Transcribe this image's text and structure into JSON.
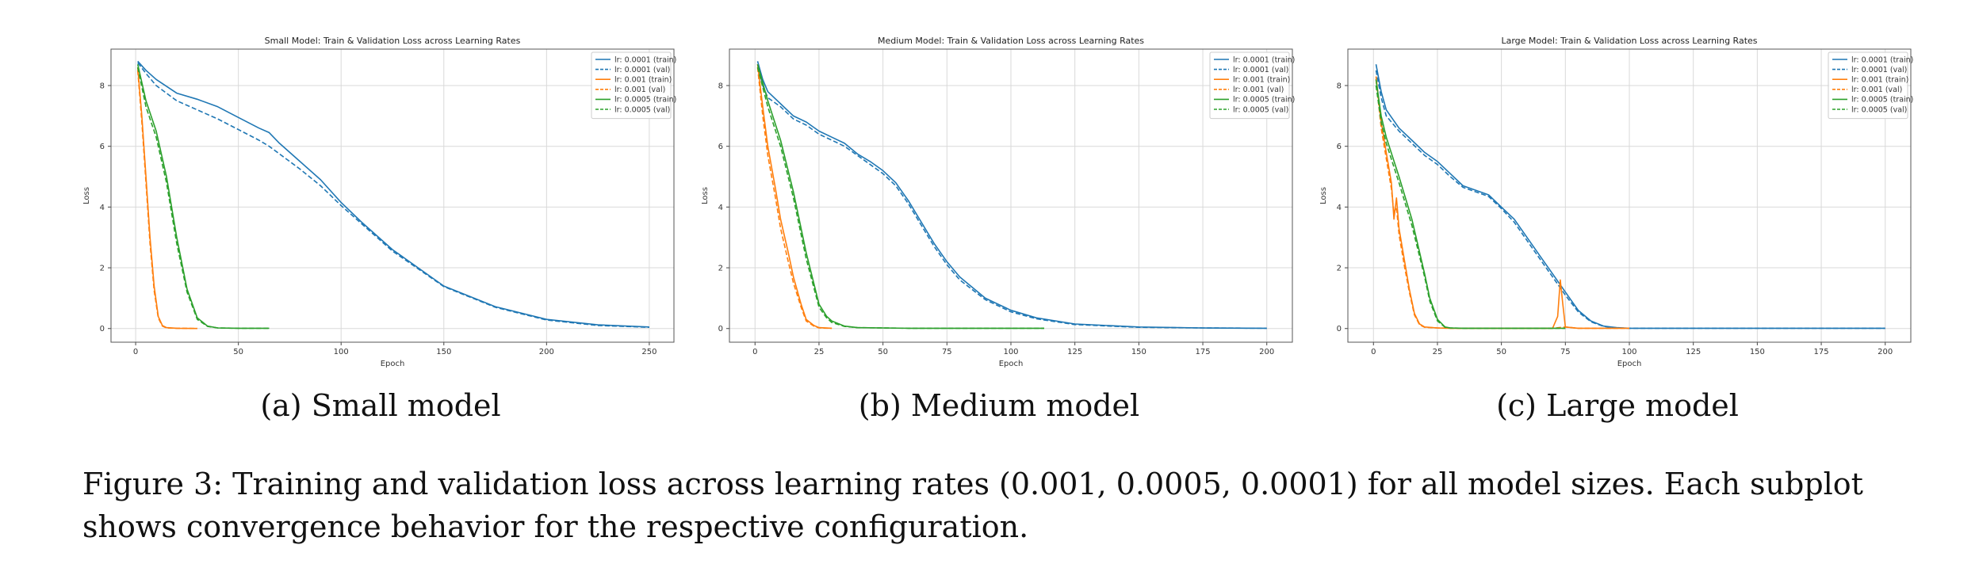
{
  "figure": {
    "caption": "Figure 3: Training and validation loss across learning rates (0.001, 0.0005, 0.0001) for all model sizes. Each subplot shows convergence behavior for the respective configuration.",
    "subcaptions": [
      "(a) Small model",
      "(b) Medium model",
      "(c) Large model"
    ]
  },
  "colors": {
    "lr_0001": "#1f77b4",
    "lr_001": "#ff7f0e",
    "lr_0005": "#2ca02c"
  },
  "chart_data": [
    {
      "type": "line",
      "title": "Small Model: Train & Validation Loss across Learning Rates",
      "xlabel": "Epoch",
      "ylabel": "Loss",
      "xlim": [
        -12,
        262
      ],
      "ylim": [
        -0.45,
        9.2
      ],
      "xticks": [
        0,
        50,
        100,
        150,
        200,
        250
      ],
      "yticks": [
        0,
        2,
        4,
        6,
        8
      ],
      "grid": true,
      "legend": "top-right",
      "series": [
        {
          "name": "lr: 0.0001 (train)",
          "color": "#1f77b4",
          "dash": false,
          "x": [
            1,
            5,
            10,
            20,
            30,
            40,
            50,
            60,
            65,
            70,
            80,
            90,
            100,
            110,
            125,
            150,
            175,
            200,
            225,
            250
          ],
          "y": [
            8.8,
            8.5,
            8.2,
            7.75,
            7.55,
            7.3,
            6.95,
            6.6,
            6.45,
            6.1,
            5.5,
            4.9,
            4.15,
            3.5,
            2.6,
            1.4,
            0.72,
            0.3,
            0.12,
            0.05
          ]
        },
        {
          "name": "lr: 0.0001 (val)",
          "color": "#1f77b4",
          "dash": true,
          "x": [
            1,
            5,
            10,
            20,
            30,
            40,
            50,
            60,
            65,
            70,
            80,
            90,
            100,
            110,
            125,
            150,
            175,
            200,
            225,
            250
          ],
          "y": [
            8.75,
            8.4,
            8.0,
            7.5,
            7.2,
            6.9,
            6.55,
            6.2,
            6.0,
            5.75,
            5.25,
            4.7,
            4.05,
            3.45,
            2.55,
            1.38,
            0.7,
            0.28,
            0.1,
            0.04
          ]
        },
        {
          "name": "lr: 0.001 (train)",
          "color": "#ff7f0e",
          "dash": false,
          "x": [
            1,
            3,
            5,
            7,
            9,
            11,
            13,
            15,
            20,
            30
          ],
          "y": [
            8.6,
            7.0,
            5.0,
            3.0,
            1.4,
            0.4,
            0.1,
            0.03,
            0.01,
            0.0
          ]
        },
        {
          "name": "lr: 0.001 (val)",
          "color": "#ff7f0e",
          "dash": true,
          "x": [
            1,
            3,
            5,
            7,
            9,
            11,
            13,
            15,
            20,
            30
          ],
          "y": [
            8.5,
            6.8,
            4.8,
            2.8,
            1.25,
            0.35,
            0.08,
            0.02,
            0.01,
            0.0
          ]
        },
        {
          "name": "lr: 0.0005 (train)",
          "color": "#2ca02c",
          "dash": false,
          "x": [
            1,
            5,
            10,
            15,
            20,
            25,
            30,
            35,
            40,
            50,
            65
          ],
          "y": [
            8.7,
            7.5,
            6.5,
            5.0,
            3.0,
            1.3,
            0.35,
            0.08,
            0.02,
            0.01,
            0.01
          ]
        },
        {
          "name": "lr: 0.0005 (val)",
          "color": "#2ca02c",
          "dash": true,
          "x": [
            1,
            5,
            10,
            15,
            20,
            25,
            30,
            35,
            40,
            50,
            65
          ],
          "y": [
            8.6,
            7.3,
            6.3,
            4.8,
            2.8,
            1.2,
            0.3,
            0.07,
            0.02,
            0.01,
            0.01
          ]
        }
      ]
    },
    {
      "type": "line",
      "title": "Medium Model: Train & Validation Loss across Learning Rates",
      "xlabel": "Epoch",
      "ylabel": "Loss",
      "xlim": [
        -10,
        210
      ],
      "ylim": [
        -0.45,
        9.2
      ],
      "xticks": [
        0,
        25,
        50,
        75,
        100,
        125,
        150,
        175,
        200
      ],
      "yticks": [
        0,
        2,
        4,
        6,
        8
      ],
      "grid": true,
      "legend": "top-right",
      "series": [
        {
          "name": "lr: 0.0001 (train)",
          "color": "#1f77b4",
          "dash": false,
          "x": [
            1,
            3,
            5,
            10,
            15,
            20,
            25,
            30,
            35,
            40,
            45,
            50,
            55,
            60,
            65,
            70,
            75,
            80,
            90,
            100,
            110,
            125,
            150,
            175,
            200
          ],
          "y": [
            8.8,
            8.2,
            7.8,
            7.4,
            7.0,
            6.8,
            6.5,
            6.3,
            6.1,
            5.75,
            5.5,
            5.2,
            4.8,
            4.2,
            3.5,
            2.8,
            2.2,
            1.7,
            1.0,
            0.6,
            0.35,
            0.15,
            0.05,
            0.02,
            0.01
          ]
        },
        {
          "name": "lr: 0.0001 (val)",
          "color": "#1f77b4",
          "dash": true,
          "x": [
            1,
            3,
            5,
            10,
            15,
            20,
            25,
            30,
            35,
            40,
            45,
            50,
            55,
            60,
            65,
            70,
            75,
            80,
            90,
            100,
            110,
            125,
            150,
            175,
            200
          ],
          "y": [
            8.7,
            8.0,
            7.6,
            7.3,
            6.9,
            6.7,
            6.4,
            6.2,
            6.0,
            5.7,
            5.4,
            5.1,
            4.7,
            4.1,
            3.4,
            2.7,
            2.1,
            1.6,
            0.95,
            0.55,
            0.32,
            0.13,
            0.04,
            0.02,
            0.01
          ]
        },
        {
          "name": "lr: 0.001 (train)",
          "color": "#ff7f0e",
          "dash": false,
          "x": [
            1,
            3,
            5,
            8,
            10,
            13,
            15,
            18,
            20,
            23,
            25,
            30
          ],
          "y": [
            8.7,
            7.3,
            6.0,
            4.6,
            3.6,
            2.5,
            1.7,
            0.8,
            0.3,
            0.1,
            0.03,
            0.01
          ]
        },
        {
          "name": "lr: 0.001 (val)",
          "color": "#ff7f0e",
          "dash": true,
          "x": [
            1,
            3,
            5,
            8,
            10,
            13,
            15,
            18,
            20,
            23,
            25,
            30
          ],
          "y": [
            8.6,
            7.0,
            5.7,
            4.3,
            3.3,
            2.2,
            1.5,
            0.7,
            0.25,
            0.08,
            0.02,
            0.01
          ]
        },
        {
          "name": "lr: 0.0005 (train)",
          "color": "#2ca02c",
          "dash": false,
          "x": [
            1,
            5,
            10,
            15,
            20,
            25,
            28,
            30,
            35,
            40,
            50,
            60,
            80,
            100,
            113
          ],
          "y": [
            8.7,
            7.5,
            6.2,
            4.5,
            2.5,
            0.8,
            0.4,
            0.25,
            0.08,
            0.03,
            0.02,
            0.01,
            0.01,
            0.01,
            0.01
          ]
        },
        {
          "name": "lr: 0.0005 (val)",
          "color": "#2ca02c",
          "dash": true,
          "x": [
            1,
            5,
            10,
            15,
            20,
            25,
            28,
            30,
            35,
            40,
            50,
            60,
            80,
            100,
            113
          ],
          "y": [
            8.6,
            7.3,
            6.0,
            4.3,
            2.3,
            0.7,
            0.35,
            0.2,
            0.07,
            0.03,
            0.02,
            0.01,
            0.01,
            0.01,
            0.01
          ]
        }
      ]
    },
    {
      "type": "line",
      "title": "Large Model: Train & Validation Loss across Learning Rates",
      "xlabel": "Epoch",
      "ylabel": "Loss",
      "xlim": [
        -10,
        210
      ],
      "ylim": [
        -0.45,
        9.2
      ],
      "xticks": [
        0,
        25,
        50,
        75,
        100,
        125,
        150,
        175,
        200
      ],
      "yticks": [
        0,
        2,
        4,
        6,
        8
      ],
      "grid": true,
      "legend": "top-right",
      "series": [
        {
          "name": "lr: 0.0001 (train)",
          "color": "#1f77b4",
          "dash": false,
          "x": [
            1,
            3,
            5,
            10,
            15,
            20,
            25,
            30,
            35,
            40,
            45,
            50,
            55,
            60,
            65,
            70,
            75,
            80,
            85,
            90,
            95,
            100,
            125,
            150,
            175,
            200
          ],
          "y": [
            8.7,
            7.8,
            7.2,
            6.6,
            6.2,
            5.8,
            5.5,
            5.1,
            4.7,
            4.55,
            4.4,
            4.0,
            3.6,
            3.0,
            2.4,
            1.8,
            1.2,
            0.6,
            0.25,
            0.08,
            0.03,
            0.01,
            0.01,
            0.01,
            0.01,
            0.01
          ]
        },
        {
          "name": "lr: 0.0001 (val)",
          "color": "#1f77b4",
          "dash": true,
          "x": [
            1,
            3,
            5,
            10,
            15,
            20,
            25,
            30,
            35,
            40,
            45,
            50,
            55,
            60,
            65,
            70,
            75,
            80,
            85,
            90,
            95,
            100,
            125,
            150,
            175,
            200
          ],
          "y": [
            8.5,
            7.6,
            7.0,
            6.5,
            6.1,
            5.7,
            5.4,
            5.0,
            4.65,
            4.5,
            4.35,
            3.95,
            3.5,
            2.9,
            2.3,
            1.7,
            1.1,
            0.55,
            0.22,
            0.07,
            0.02,
            0.01,
            0.01,
            0.01,
            0.01,
            0.01
          ]
        },
        {
          "name": "lr: 0.001 (train)",
          "color": "#ff7f0e",
          "dash": false,
          "x": [
            1,
            3,
            5,
            7,
            8,
            9,
            10,
            12,
            14,
            16,
            18,
            20,
            25,
            30,
            40,
            50,
            60,
            70,
            72,
            73,
            74,
            75,
            80,
            90,
            100
          ],
          "y": [
            8.3,
            6.8,
            5.8,
            4.8,
            3.6,
            4.3,
            3.3,
            2.3,
            1.3,
            0.5,
            0.15,
            0.05,
            0.02,
            0.01,
            0.01,
            0.01,
            0.01,
            0.01,
            0.4,
            1.6,
            0.8,
            0.05,
            0.01,
            0.01,
            0.01
          ]
        },
        {
          "name": "lr: 0.001 (val)",
          "color": "#ff7f0e",
          "dash": true,
          "x": [
            1,
            3,
            5,
            7,
            8,
            9,
            10,
            12,
            14,
            16,
            18,
            20,
            25,
            30,
            40,
            50,
            60,
            70,
            75,
            80,
            90,
            100
          ],
          "y": [
            8.2,
            6.6,
            5.6,
            4.6,
            3.8,
            4.0,
            3.1,
            2.1,
            1.2,
            0.45,
            0.12,
            0.04,
            0.02,
            0.01,
            0.01,
            0.01,
            0.01,
            0.01,
            0.05,
            0.01,
            0.01,
            0.01
          ]
        },
        {
          "name": "lr: 0.0005 (train)",
          "color": "#2ca02c",
          "dash": false,
          "x": [
            1,
            3,
            5,
            10,
            15,
            20,
            22,
            25,
            28,
            30,
            35,
            40,
            50,
            60,
            70,
            75
          ],
          "y": [
            8.2,
            7.0,
            6.3,
            5.0,
            3.6,
            1.8,
            1.0,
            0.3,
            0.05,
            0.02,
            0.01,
            0.01,
            0.01,
            0.01,
            0.01,
            0.01
          ]
        },
        {
          "name": "lr: 0.0005 (val)",
          "color": "#2ca02c",
          "dash": true,
          "x": [
            1,
            3,
            5,
            10,
            15,
            20,
            22,
            25,
            28,
            30,
            35,
            40,
            50,
            60,
            70,
            75
          ],
          "y": [
            8.0,
            6.8,
            6.1,
            4.8,
            3.4,
            1.7,
            0.9,
            0.25,
            0.04,
            0.02,
            0.01,
            0.01,
            0.01,
            0.01,
            0.01,
            0.01
          ]
        }
      ]
    }
  ]
}
